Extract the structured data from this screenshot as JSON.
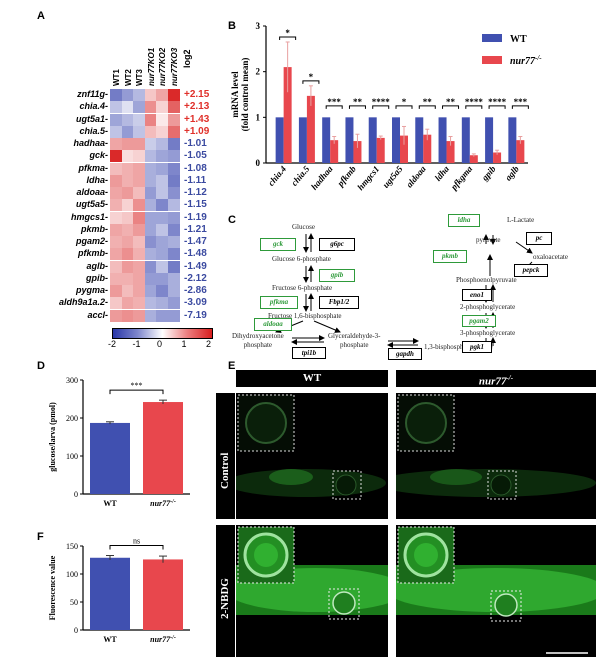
{
  "panel_labels": {
    "a": "A",
    "b": "B",
    "c": "C",
    "d": "D",
    "e": "E",
    "f": "F"
  },
  "heatmap": {
    "columns": [
      "WT1",
      "WT2",
      "WT3",
      "nur77KO1",
      "nur77KO2",
      "nur77KO3"
    ],
    "log2_header": "log2",
    "genes": [
      "znf11g",
      "chia.4",
      "ugt5a1",
      "chia.5",
      "hadhaa",
      "gck",
      "pfkma",
      "ldha",
      "aldoaa",
      "ugt5a5",
      "hmgcs1",
      "pkmb",
      "pgam2",
      "pfkmb",
      "aglb",
      "gpib",
      "pygma",
      "aldh9a1a.2",
      "accl"
    ],
    "log2_values": [
      "+2.15",
      "+2.13",
      "+1.43",
      "+1.09",
      "-1.01",
      "-1.05",
      "-1.08",
      "-1.11",
      "-1.12",
      "-1.15",
      "-1.19",
      "-1.21",
      "-1.47",
      "-1.48",
      "-1.49",
      "-2.12",
      "-2.86",
      "-3.09",
      "-7.19"
    ],
    "z_scores": [
      [
        -1.3,
        -1.0,
        -0.7,
        0.5,
        0.8,
        1.9
      ],
      [
        -0.6,
        -0.3,
        -0.9,
        1.0,
        0.4,
        1.4
      ],
      [
        -0.9,
        -0.7,
        -0.5,
        1.1,
        0.2,
        0.9
      ],
      [
        -0.6,
        -1.0,
        -0.6,
        0.6,
        0.4,
        1.3
      ],
      [
        0.8,
        0.9,
        0.9,
        -0.5,
        -0.7,
        -1.3
      ],
      [
        1.9,
        0.3,
        0.4,
        -0.7,
        -0.9,
        -1.0
      ],
      [
        0.6,
        0.7,
        0.8,
        -0.8,
        -0.9,
        -1.2
      ],
      [
        0.9,
        0.7,
        0.8,
        -0.8,
        -0.6,
        -1.3
      ],
      [
        0.8,
        0.9,
        0.6,
        -1.0,
        -0.6,
        -1.1
      ],
      [
        0.7,
        0.4,
        1.0,
        -0.8,
        -1.2,
        -0.7
      ],
      [
        0.4,
        0.5,
        1.1,
        -0.9,
        -0.9,
        -1.0
      ],
      [
        0.8,
        0.7,
        0.9,
        -0.9,
        -0.6,
        -1.2
      ],
      [
        0.7,
        0.8,
        0.6,
        -1.1,
        -0.9,
        -0.8
      ],
      [
        0.8,
        1.0,
        0.7,
        -0.8,
        -0.9,
        -1.2
      ],
      [
        0.6,
        0.9,
        0.8,
        -1.1,
        -0.6,
        -1.3
      ],
      [
        0.7,
        0.7,
        0.8,
        -1.0,
        -1.0,
        -0.8
      ],
      [
        0.9,
        0.6,
        0.8,
        -0.9,
        -1.2,
        -0.8
      ],
      [
        0.5,
        0.8,
        0.7,
        -0.7,
        -0.8,
        -1.0
      ],
      [
        0.9,
        1.0,
        0.9,
        -0.8,
        -1.0,
        -1.0
      ]
    ],
    "colorbar_ticks": [
      "-2",
      "-1",
      "0",
      "1",
      "2"
    ]
  },
  "chart_data": [
    {
      "type": "bar",
      "panel": "B",
      "ylabel": "mRNA level (fold control mean)",
      "ylim": [
        0,
        3
      ],
      "yticks": [
        "0",
        "1",
        "2",
        "3"
      ],
      "categories": [
        "chia.4",
        "chia.5",
        "hadhaa",
        "pfkmb",
        "hmgcs1",
        "ugt5a5",
        "aldoaa",
        "ldha",
        "pfkgma",
        "gpib",
        "aglb"
      ],
      "series": [
        {
          "name": "WT",
          "values": [
            1,
            1,
            1,
            1,
            1,
            1,
            1,
            1,
            1,
            1,
            1
          ]
        },
        {
          "name": "nur77-/-",
          "values": [
            2.1,
            1.47,
            0.5,
            0.48,
            0.55,
            0.6,
            0.62,
            0.48,
            0.17,
            0.23,
            0.5
          ]
        }
      ],
      "error_nur77": [
        0.55,
        0.22,
        0.08,
        0.15,
        0.04,
        0.2,
        0.12,
        0.1,
        0.03,
        0.05,
        0.08
      ],
      "significance": [
        "*",
        "*",
        "***",
        "**",
        "****",
        "*",
        "**",
        "**",
        "****",
        "****",
        "***"
      ],
      "legend": [
        {
          "label": "WT"
        },
        {
          "label": "nur77",
          "sup": "-/-"
        }
      ]
    },
    {
      "type": "bar",
      "panel": "D",
      "ylabel": "glucose/larva (pmol)",
      "ylim": [
        0,
        300
      ],
      "yticks": [
        "0",
        "100",
        "200",
        "300"
      ],
      "categories": [
        {
          "label": "WT"
        },
        {
          "label": "nur77",
          "sup": "-/-"
        }
      ],
      "values": [
        187,
        242
      ],
      "errors": [
        3,
        5
      ],
      "significance": "***"
    },
    {
      "type": "bar",
      "panel": "F",
      "ylabel": "Fluorescence value",
      "ylim": [
        0,
        150
      ],
      "yticks": [
        "0",
        "50",
        "100",
        "150"
      ],
      "categories": [
        {
          "label": "WT"
        },
        {
          "label": "nur77",
          "sup": "-/-"
        }
      ],
      "values": [
        129,
        126
      ],
      "errors": [
        4,
        6
      ],
      "significance": "ns"
    }
  ],
  "pathway": {
    "glucose": "Glucose",
    "g6p": "Glucose 6-phosphate",
    "f6p": "Fructose 6-phosphate",
    "f16bp": "Fructose 1,6-bisphosphate",
    "dhap_1": "Dihydroxyacetone",
    "dhap_2": "phosphate",
    "g3p_1": "Glyceraldehyde-3-",
    "g3p_2": "phosphate",
    "lactate": "L-Lactate",
    "pyruvate": "pyruvate",
    "oaa": "oxaloacetate",
    "pep": "Phosphoenolpyruvate",
    "pg2": "2-phosphoglycerate",
    "pg3": "3-phosphoglycerate",
    "bpg": "1,3-bisphosphoglycerate",
    "e_gck": "gck",
    "e_g6pc": "g6pc",
    "e_gpib": "gpib",
    "e_pfkma": "pfkma",
    "e_fbp": "Fbp1/2",
    "e_aldoaa": "aldoaa",
    "e_tpi": "tpi1b",
    "e_gapdh": "gapdh",
    "e_ldha": "ldha",
    "e_pc": "pc",
    "e_pkmb": "pkmb",
    "e_pepck": "pepck",
    "e_eno": "eno1",
    "e_pgam": "pgam2",
    "e_pgk": "pgk1"
  },
  "microscopy": {
    "col_wt": "WT",
    "col_ko": "nur77",
    "col_ko_sup": "-/-",
    "row_control": "Control",
    "row_nbdg": "2-NBDG"
  },
  "colors": {
    "wt": "#4050b0",
    "ko": "#e8474d",
    "down_text": "#3b4aa0",
    "up_text": "#e0302a",
    "enzyme_down": "#2e9a3a"
  }
}
